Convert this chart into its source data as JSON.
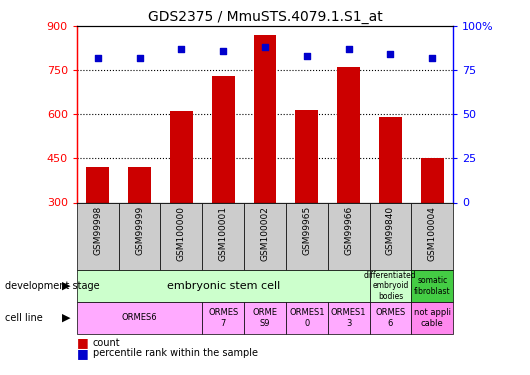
{
  "title": "GDS2375 / MmuSTS.4079.1.S1_at",
  "samples": [
    "GSM99998",
    "GSM99999",
    "GSM100000",
    "GSM100001",
    "GSM100002",
    "GSM99965",
    "GSM99966",
    "GSM99840",
    "GSM100004"
  ],
  "counts": [
    420,
    420,
    610,
    730,
    870,
    615,
    760,
    590,
    450
  ],
  "percentiles": [
    82,
    82,
    87,
    86,
    88,
    83,
    87,
    84,
    82
  ],
  "ymin": 300,
  "ymax": 900,
  "yticks": [
    300,
    450,
    600,
    750,
    900
  ],
  "right_yticks": [
    0,
    25,
    50,
    75,
    100
  ],
  "right_ylabels": [
    "0",
    "25",
    "50",
    "75",
    "100%"
  ],
  "bar_color": "#cc0000",
  "dot_color": "#0000cc",
  "dev_stage_groups": [
    {
      "start": 0,
      "end": 8,
      "text": "embryonic stem cell",
      "color": "#ccffcc"
    },
    {
      "start": 7,
      "end": 8,
      "text": "differentiated\nembryoid\nbodies",
      "color": "#ccffcc"
    },
    {
      "start": 8,
      "end": 9,
      "text": "somatic\nfibroblast",
      "color": "#44cc44"
    }
  ],
  "cell_line_groups": [
    {
      "start": 0,
      "end": 3,
      "text": "ORMES6",
      "color": "#ffaaff"
    },
    {
      "start": 3,
      "end": 4,
      "text": "ORMES\n7",
      "color": "#ffaaff"
    },
    {
      "start": 4,
      "end": 5,
      "text": "ORME\nS9",
      "color": "#ffaaff"
    },
    {
      "start": 5,
      "end": 6,
      "text": "ORMES1\n0",
      "color": "#ffaaff"
    },
    {
      "start": 6,
      "end": 7,
      "text": "ORMES1\n3",
      "color": "#ffaaff"
    },
    {
      "start": 7,
      "end": 8,
      "text": "ORMES\n6",
      "color": "#ffaaff"
    },
    {
      "start": 8,
      "end": 9,
      "text": "not appli\ncable",
      "color": "#ff88ee"
    }
  ],
  "left_label_dev": "development stage",
  "left_label_cell": "cell line",
  "legend_count_color": "#cc0000",
  "legend_pct_color": "#0000cc",
  "sample_bg": "#cccccc",
  "grid_dotted_ticks": [
    450,
    600,
    750
  ]
}
